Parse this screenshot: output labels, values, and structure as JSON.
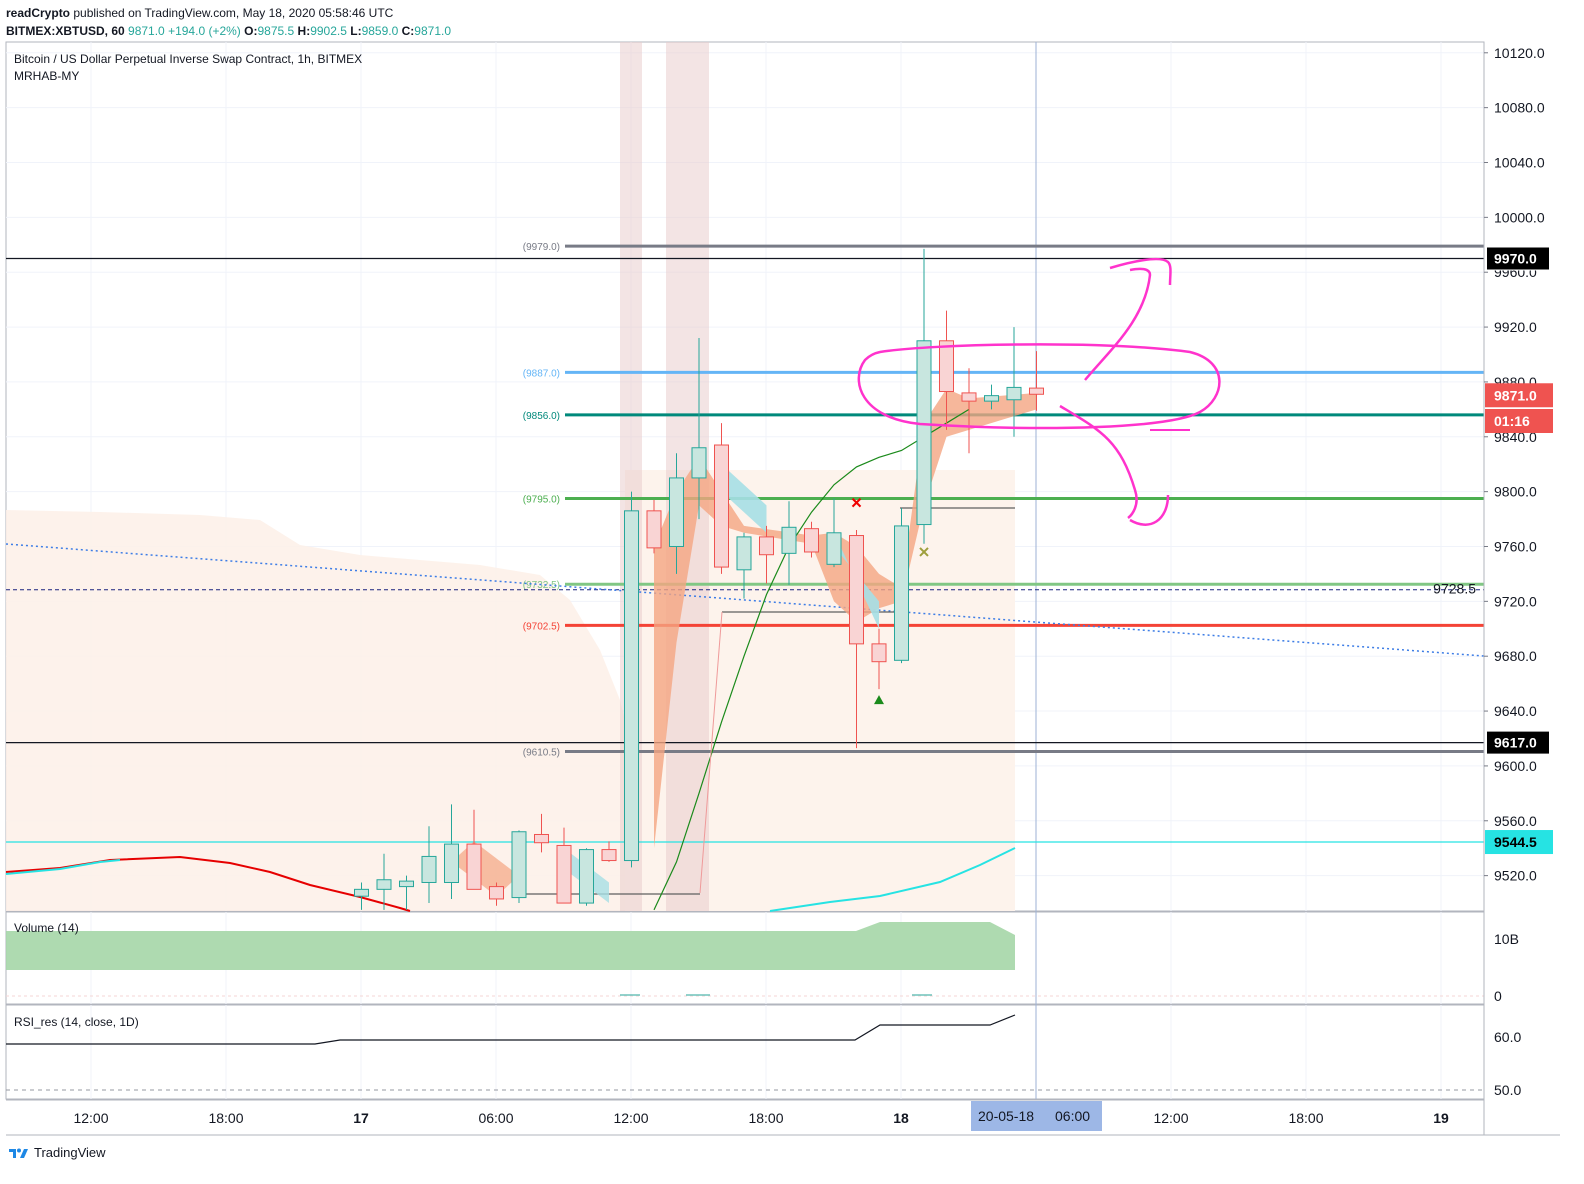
{
  "header": {
    "author": "readCrypto",
    "published": "published on TradingView.com, May 18, 2020 05:58:46 UTC",
    "symbol": "BITMEX:XBTUSD, 60",
    "last": "9871.0",
    "change": "+194.0 (+2%)",
    "o_label": "O:",
    "o": "9875.5",
    "h_label": "H:",
    "h": "9902.5",
    "l_label": "L:",
    "l": "9859.0",
    "c_label": "C:",
    "c": "9871.0"
  },
  "legend": {
    "title": "Bitcoin / US Dollar Perpetual Inverse Swap Contract, 1h, BITMEX",
    "indicator": "MRHAB-MY"
  },
  "volume_pane": {
    "title": "Volume (14)",
    "ticks": [
      "10B",
      "0"
    ]
  },
  "rsi_pane": {
    "title": "RSI_res (14, close, 1D)",
    "ticks": [
      "60.0",
      "50.0"
    ]
  },
  "footer": {
    "brand": "TradingView"
  },
  "colors": {
    "up_fill": "#c8e6df",
    "up_border": "#26a69a",
    "down_fill": "#f9d4d4",
    "down_border": "#ef5350",
    "magenta": "#ff33cc",
    "blue_line": "#64b5f6",
    "teal_line": "#00897b",
    "green_line": "#4caf50",
    "light_green_line": "#81c784",
    "red_line": "#f44336",
    "grey_line": "#787b86",
    "cyan_line": "#26e3e3",
    "badge_red": "#ef5350"
  },
  "chart_data": {
    "type": "candlestick",
    "price_axis": {
      "ticks": [
        "10120.0",
        "10080.0",
        "10040.0",
        "10000.0",
        "9960.0",
        "9920.0",
        "9880.0",
        "9840.0",
        "9800.0",
        "9760.0",
        "9720.0",
        "9680.0",
        "9640.0",
        "9600.0",
        "9560.0",
        "9520.0"
      ],
      "range": [
        9495,
        10125
      ]
    },
    "time_axis": {
      "ticks": [
        "12:00",
        "18:00",
        "17",
        "06:00",
        "12:00",
        "18:00",
        "18",
        "06:00",
        "12:00",
        "18:00",
        "19"
      ],
      "bold_ticks": [
        "17",
        "18",
        "19"
      ],
      "cursor_label": "20-05-18",
      "cursor_time": "06:00"
    },
    "price_badges": [
      {
        "label": "9970.0",
        "value": 9970.0,
        "style": "black"
      },
      {
        "label": "9871.0",
        "value": 9871.0,
        "style": "red"
      },
      {
        "label": "01:16",
        "value": 9851.0,
        "style": "red"
      },
      {
        "label": "9617.0",
        "value": 9617.0,
        "style": "black"
      },
      {
        "label": "9544.5",
        "value": 9544.5,
        "style": "cyan"
      }
    ],
    "dashed_line": {
      "label": "9728.5",
      "value": 9728.5
    },
    "levels": [
      {
        "label": "(9979.0)",
        "value": 9979.0,
        "color": "#787b86"
      },
      {
        "label": "(9887.0)",
        "value": 9887.0,
        "color": "#64b5f6"
      },
      {
        "label": "(9856.0)",
        "value": 9856.0,
        "color": "#00897b"
      },
      {
        "label": "(9795.0)",
        "value": 9795.0,
        "color": "#4caf50"
      },
      {
        "label": "(9732.5)",
        "value": 9732.5,
        "color": "#81c784"
      },
      {
        "label": "(9702.5)",
        "value": 9702.5,
        "color": "#f44336"
      },
      {
        "label": "(9610.5)",
        "value": 9610.5,
        "color": "#787b86"
      }
    ],
    "horizontal_lines": [
      {
        "value": 9970.0,
        "color": "#131722"
      },
      {
        "value": 9617.0,
        "color": "#131722"
      },
      {
        "value": 9544.5,
        "color": "#26e3e3"
      }
    ],
    "candles": [
      {
        "o": 9505,
        "h": 9515,
        "l": 9495,
        "c": 9510
      },
      {
        "o": 9510,
        "h": 9536,
        "l": 9495,
        "c": 9517
      },
      {
        "o": 9512,
        "h": 9520,
        "l": 9495,
        "c": 9516
      },
      {
        "o": 9515,
        "h": 9556,
        "l": 9500,
        "c": 9534
      },
      {
        "o": 9515,
        "h": 9572,
        "l": 9503,
        "c": 9543
      },
      {
        "o": 9543,
        "h": 9568,
        "l": 9510,
        "c": 9510
      },
      {
        "o": 9512,
        "h": 9515,
        "l": 9498,
        "c": 9503
      },
      {
        "o": 9504,
        "h": 9553,
        "l": 9500,
        "c": 9552
      },
      {
        "o": 9550,
        "h": 9565,
        "l": 9537,
        "c": 9544
      },
      {
        "o": 9542,
        "h": 9555,
        "l": 9500,
        "c": 9500
      },
      {
        "o": 9500,
        "h": 9540,
        "l": 9498,
        "c": 9539
      },
      {
        "o": 9539,
        "h": 9545,
        "l": 9530,
        "c": 9531
      },
      {
        "o": 9531,
        "h": 9800,
        "l": 9526,
        "c": 9786
      },
      {
        "o": 9786,
        "h": 9794,
        "l": 9755,
        "c": 9759
      },
      {
        "o": 9760,
        "h": 9828,
        "l": 9740,
        "c": 9810
      },
      {
        "o": 9810,
        "h": 9912,
        "l": 9780,
        "c": 9832
      },
      {
        "o": 9834,
        "h": 9850,
        "l": 9740,
        "c": 9745
      },
      {
        "o": 9743,
        "h": 9770,
        "l": 9722,
        "c": 9767
      },
      {
        "o": 9767,
        "h": 9775,
        "l": 9733,
        "c": 9754
      },
      {
        "o": 9755,
        "h": 9793,
        "l": 9732,
        "c": 9774
      },
      {
        "o": 9773,
        "h": 9778,
        "l": 9752,
        "c": 9756
      },
      {
        "o": 9747,
        "h": 9795,
        "l": 9745,
        "c": 9770
      },
      {
        "o": 9768,
        "h": 9772,
        "l": 9613,
        "c": 9689
      },
      {
        "o": 9689,
        "h": 9700,
        "l": 9656,
        "c": 9676
      },
      {
        "o": 9677,
        "h": 9788,
        "l": 9675,
        "c": 9775
      },
      {
        "o": 9776,
        "h": 9977,
        "l": 9762,
        "c": 9910
      },
      {
        "o": 9910,
        "h": 9932,
        "l": 9845,
        "c": 9873
      },
      {
        "o": 9872,
        "h": 9890,
        "l": 9828,
        "c": 9866
      },
      {
        "o": 9866,
        "h": 9878,
        "l": 9860,
        "c": 9870
      },
      {
        "o": 9867,
        "h": 9920,
        "l": 9840,
        "c": 9876
      },
      {
        "o": 9875.5,
        "h": 9902.5,
        "l": 9859,
        "c": 9871
      }
    ],
    "markers": [
      {
        "type": "cross",
        "color": "#ef0000",
        "candle": 22,
        "value": 9792
      },
      {
        "type": "triangle-up",
        "color": "#1b8a1b",
        "candle": 23,
        "value": 9648
      },
      {
        "type": "cross",
        "color": "#9e9e3c",
        "candle": 25,
        "value": 9756
      }
    ],
    "red_curve": [
      [
        0,
        9518
      ],
      [
        2,
        9520
      ],
      [
        4,
        9528
      ],
      [
        6,
        9534
      ],
      [
        8,
        9537
      ],
      [
        10,
        9533
      ],
      [
        12,
        9525
      ],
      [
        14,
        9511
      ],
      [
        16,
        9502
      ],
      [
        17,
        9495
      ]
    ],
    "cyan_curve": [
      [
        17,
        9495
      ],
      [
        19,
        9498
      ],
      [
        21,
        9503
      ],
      [
        23,
        9506
      ],
      [
        25,
        9515
      ],
      [
        27,
        9527
      ],
      [
        29,
        9538
      ],
      [
        30,
        9546
      ]
    ],
    "green_ma": [
      [
        13,
        9495
      ],
      [
        14,
        9530
      ],
      [
        15,
        9580
      ],
      [
        16,
        9632
      ],
      [
        17,
        9680
      ],
      [
        18,
        9725
      ],
      [
        19,
        9760
      ],
      [
        20,
        9785
      ],
      [
        21,
        9805
      ],
      [
        22,
        9818
      ],
      [
        23,
        9825
      ],
      [
        24,
        9830
      ],
      [
        25,
        9840
      ],
      [
        26,
        9850
      ],
      [
        27,
        9860
      ]
    ],
    "rsi_values": [
      [
        0,
        58
      ],
      [
        6,
        58
      ],
      [
        7,
        58.5
      ],
      [
        19,
        58.5
      ],
      [
        20,
        60.5
      ],
      [
        25,
        60.5
      ],
      [
        26,
        61.5
      ]
    ]
  }
}
